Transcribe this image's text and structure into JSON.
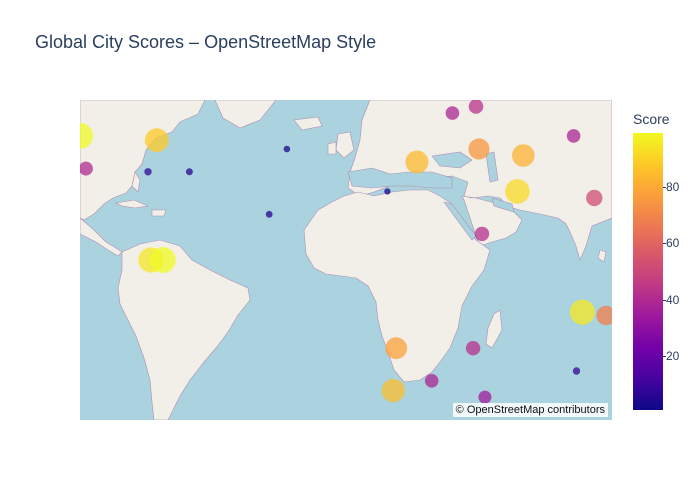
{
  "title": "Global City Scores – OpenStreetMap Style",
  "attribution": "© OpenStreetMap contributors",
  "colorscale": {
    "title": "Score",
    "range": [
      1,
      99
    ],
    "ticks": [
      20,
      40,
      60,
      80
    ],
    "colors": [
      "#0d0887",
      "#46039f",
      "#7201a8",
      "#9c179e",
      "#bd3786",
      "#d8576b",
      "#ed7953",
      "#fb9f3a",
      "#fdca26",
      "#f0f921"
    ]
  },
  "colors": {
    "ocean": "#aad3df",
    "land": "#f2efe9",
    "border": "#b08fb0",
    "title": "#2a3f5f"
  },
  "chart_data": {
    "type": "scatter",
    "map_style": "open-street-map",
    "view": {
      "lon_range": [
        -100,
        80
      ],
      "lat_range": [
        -45,
        53
      ]
    },
    "points": [
      {
        "lon": -74,
        "lat": 40.7,
        "score": 88
      },
      {
        "lon": -100,
        "lat": 42,
        "score": 99
      },
      {
        "lon": -98,
        "lat": 32,
        "score": 40
      },
      {
        "lon": -77,
        "lat": 31,
        "score": 8
      },
      {
        "lon": -63,
        "lat": 31,
        "score": 6
      },
      {
        "lon": -30,
        "lat": 38,
        "score": 4
      },
      {
        "lon": -36,
        "lat": 18,
        "score": 5
      },
      {
        "lon": 4,
        "lat": 25,
        "score": 3
      },
      {
        "lon": 14,
        "lat": 34,
        "score": 84
      },
      {
        "lon": 26,
        "lat": 49,
        "score": 38
      },
      {
        "lon": 34,
        "lat": 51,
        "score": 43
      },
      {
        "lon": 35,
        "lat": 38,
        "score": 75
      },
      {
        "lon": 50,
        "lat": 36,
        "score": 82
      },
      {
        "lon": 48,
        "lat": 25,
        "score": 92
      },
      {
        "lon": 36,
        "lat": 12,
        "score": 42
      },
      {
        "lon": 67,
        "lat": 42,
        "score": 38
      },
      {
        "lon": 74,
        "lat": 23,
        "score": 52
      },
      {
        "lon": -76,
        "lat": 4,
        "score": 95
      },
      {
        "lon": -72,
        "lat": 4,
        "score": 99
      },
      {
        "lon": 7,
        "lat": -23,
        "score": 78
      },
      {
        "lon": 33,
        "lat": -23,
        "score": 42
      },
      {
        "lon": 19,
        "lat": -33,
        "score": 38
      },
      {
        "lon": 6,
        "lat": -36,
        "score": 85
      },
      {
        "lon": 37,
        "lat": -38,
        "score": 35
      },
      {
        "lon": 70,
        "lat": -12,
        "score": 95
      },
      {
        "lon": 78,
        "lat": -13,
        "score": 68
      },
      {
        "lon": 68,
        "lat": -30,
        "score": 8
      }
    ]
  }
}
